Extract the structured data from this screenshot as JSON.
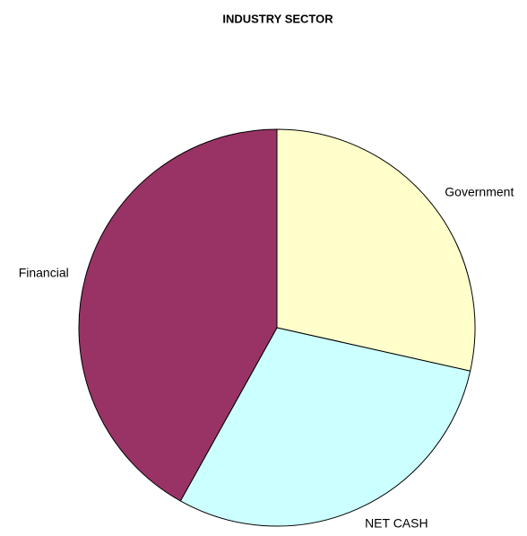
{
  "chart_data": {
    "type": "pie",
    "title": "INDUSTRY SECTOR",
    "categories": [
      "Government",
      "NET CASH",
      "Financial"
    ],
    "values": [
      28.5,
      29.6,
      41.9
    ],
    "colors": [
      "#ffffcc",
      "#ccffff",
      "#993366"
    ]
  }
}
